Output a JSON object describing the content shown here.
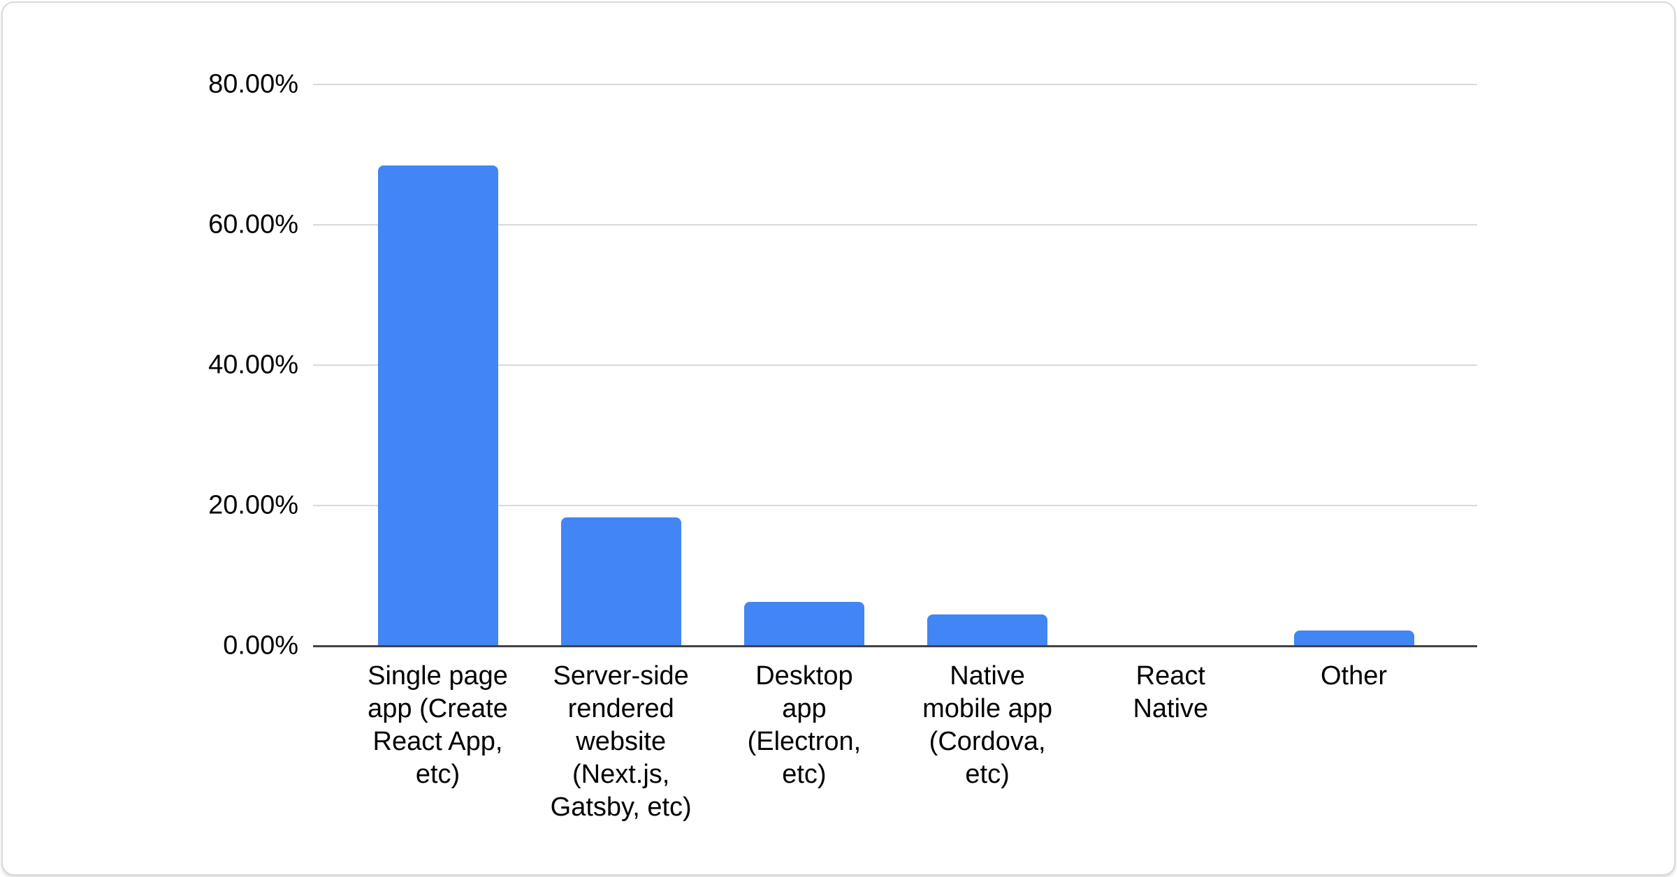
{
  "chart_data": {
    "type": "bar",
    "title": "",
    "categories": [
      "Single page app (Create React App, etc)",
      "Server-side rendered website (Next.js, Gatsby, etc)",
      "Desktop app (Electron, etc)",
      "Native mobile app (Cordova, etc)",
      "React Native",
      "Other"
    ],
    "category_lines": [
      [
        "Single page",
        "app (Create",
        "React App,",
        "etc)"
      ],
      [
        "Server-side",
        "rendered",
        "website",
        "(Next.js,",
        "Gatsby, etc)"
      ],
      [
        "Desktop",
        "app",
        "(Electron,",
        "etc)"
      ],
      [
        "Native",
        "mobile app",
        "(Cordova,",
        "etc)"
      ],
      [
        "React",
        "Native"
      ],
      [
        "Other"
      ]
    ],
    "values": [
      68.5,
      18.3,
      6.3,
      4.5,
      0,
      2.2
    ],
    "ylim": [
      0,
      80
    ],
    "ytick_values": [
      0,
      20,
      40,
      60,
      80
    ],
    "ytick_labels": [
      "0.00%",
      "20.00%",
      "40.00%",
      "60.00%",
      "80.00%"
    ],
    "xlabel": "",
    "ylabel": "",
    "grid": "horizontal",
    "legend": "none",
    "colors": {
      "bar": "#4285f4",
      "gridline": "#d9d9d9",
      "axis_line": "#424242",
      "label": "#000000",
      "card_border": "#d6d9dd",
      "background": "#ffffff"
    }
  }
}
